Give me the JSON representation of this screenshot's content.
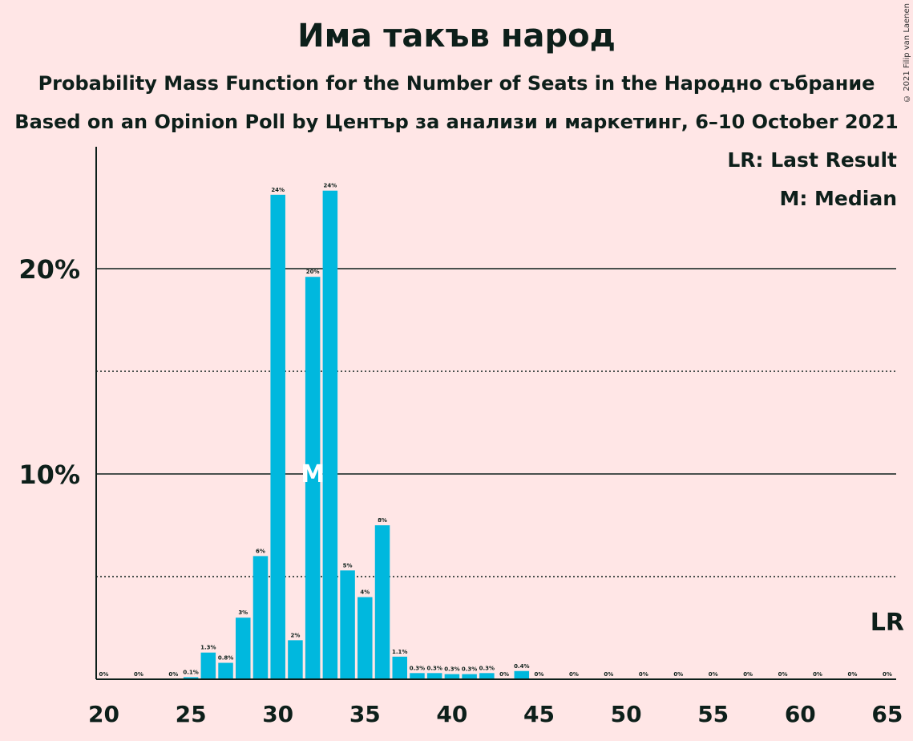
{
  "title": "Има такъв народ",
  "subtitle1": "Probability Mass Function for the Number of Seats in the Народно събрание",
  "subtitle2": "Based on an Opinion Poll by Център за анализи и маркетинг, 6–10 October 2021",
  "copyright": "© 2021 Filip van Laenen",
  "legend": {
    "last_result": "LR: Last Result",
    "median": "M: Median"
  },
  "colors": {
    "bar": "#00b8de",
    "background": "#ffe6e6",
    "text": "#0d1f1a"
  },
  "chart_data": {
    "type": "bar",
    "x": [
      20,
      21,
      22,
      23,
      24,
      25,
      26,
      27,
      28,
      29,
      30,
      31,
      32,
      33,
      34,
      35,
      36,
      37,
      38,
      39,
      40,
      41,
      42,
      43,
      44,
      45,
      46,
      47,
      48,
      49,
      50,
      51,
      52,
      53,
      54,
      55,
      56,
      57,
      58,
      59,
      60,
      61,
      62,
      63,
      64,
      65
    ],
    "values": [
      0,
      0,
      0,
      0,
      0,
      0.1,
      1.3,
      0.8,
      3.0,
      6.0,
      23.6,
      1.9,
      19.6,
      23.8,
      5.3,
      4.0,
      7.5,
      1.1,
      0.3,
      0.3,
      0.25,
      0.25,
      0.3,
      0,
      0.4,
      0,
      0,
      0,
      0,
      0,
      0,
      0,
      0,
      0,
      0,
      0,
      0,
      0,
      0,
      0,
      0,
      0,
      0,
      0,
      0,
      0
    ],
    "labels": [
      "0%",
      "",
      "0%",
      "",
      "0%",
      "0.1%",
      "1.3%",
      "0.8%",
      "3%",
      "6%",
      "24%",
      "2%",
      "20%",
      "24%",
      "5%",
      "4%",
      "8%",
      "1.1%",
      "0.3%",
      "0.3%",
      "0.3%",
      "0.3%",
      "0.3%",
      "0%",
      "0.4%",
      "0%",
      "",
      "0%",
      "",
      "0%",
      "",
      "0%",
      "",
      "0%",
      "",
      "0%",
      "",
      "0%",
      "",
      "0%",
      "",
      "0%",
      "",
      "0%",
      "",
      "0%"
    ],
    "x_ticks": [
      "20",
      "25",
      "30",
      "35",
      "40",
      "45",
      "50",
      "55",
      "60",
      "65"
    ],
    "y_ticks": [
      "10%",
      "20%"
    ],
    "ylim": [
      0,
      26
    ],
    "median": 32,
    "median_label": "M",
    "last_result": 65,
    "last_result_label": "LR",
    "grid": {
      "solid": [
        10,
        20
      ],
      "dotted": [
        5,
        15
      ]
    }
  }
}
